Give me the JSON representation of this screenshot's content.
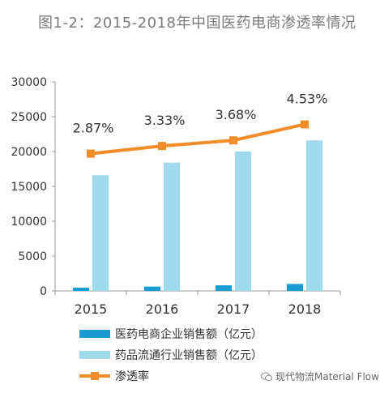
{
  "title": "图1-2：2015-2018年中国医药电商渗透率情况",
  "watermark": "现代物流Material Flow",
  "colors": {
    "series1": "#1a9bd3",
    "series2": "#9fd9ec",
    "line": "#f28c28",
    "axis": "#9a9a9a",
    "text": "#333333"
  },
  "chart_data": {
    "type": "bar",
    "categories": [
      "2015",
      "2016",
      "2017",
      "2018"
    ],
    "ylim": [
      0,
      30000
    ],
    "yticks": [
      0,
      5000,
      10000,
      15000,
      20000,
      25000,
      30000
    ],
    "grid": false,
    "legend_position": "bottom",
    "series": [
      {
        "name": "医药电商企业销售额（亿元）",
        "type": "bar",
        "values": [
          460,
          620,
          800,
          1000
        ]
      },
      {
        "name": "药品流通行业销售额（亿元）",
        "type": "bar",
        "values": [
          16600,
          18400,
          20000,
          21600
        ]
      }
    ],
    "line_series": {
      "name": "渗透率",
      "values": [
        2.87,
        3.33,
        3.68,
        4.53
      ],
      "labels": [
        "2.87%",
        "3.33%",
        "3.68%",
        "4.53%"
      ],
      "plotted_at": [
        19700,
        20800,
        21600,
        23900
      ]
    }
  }
}
